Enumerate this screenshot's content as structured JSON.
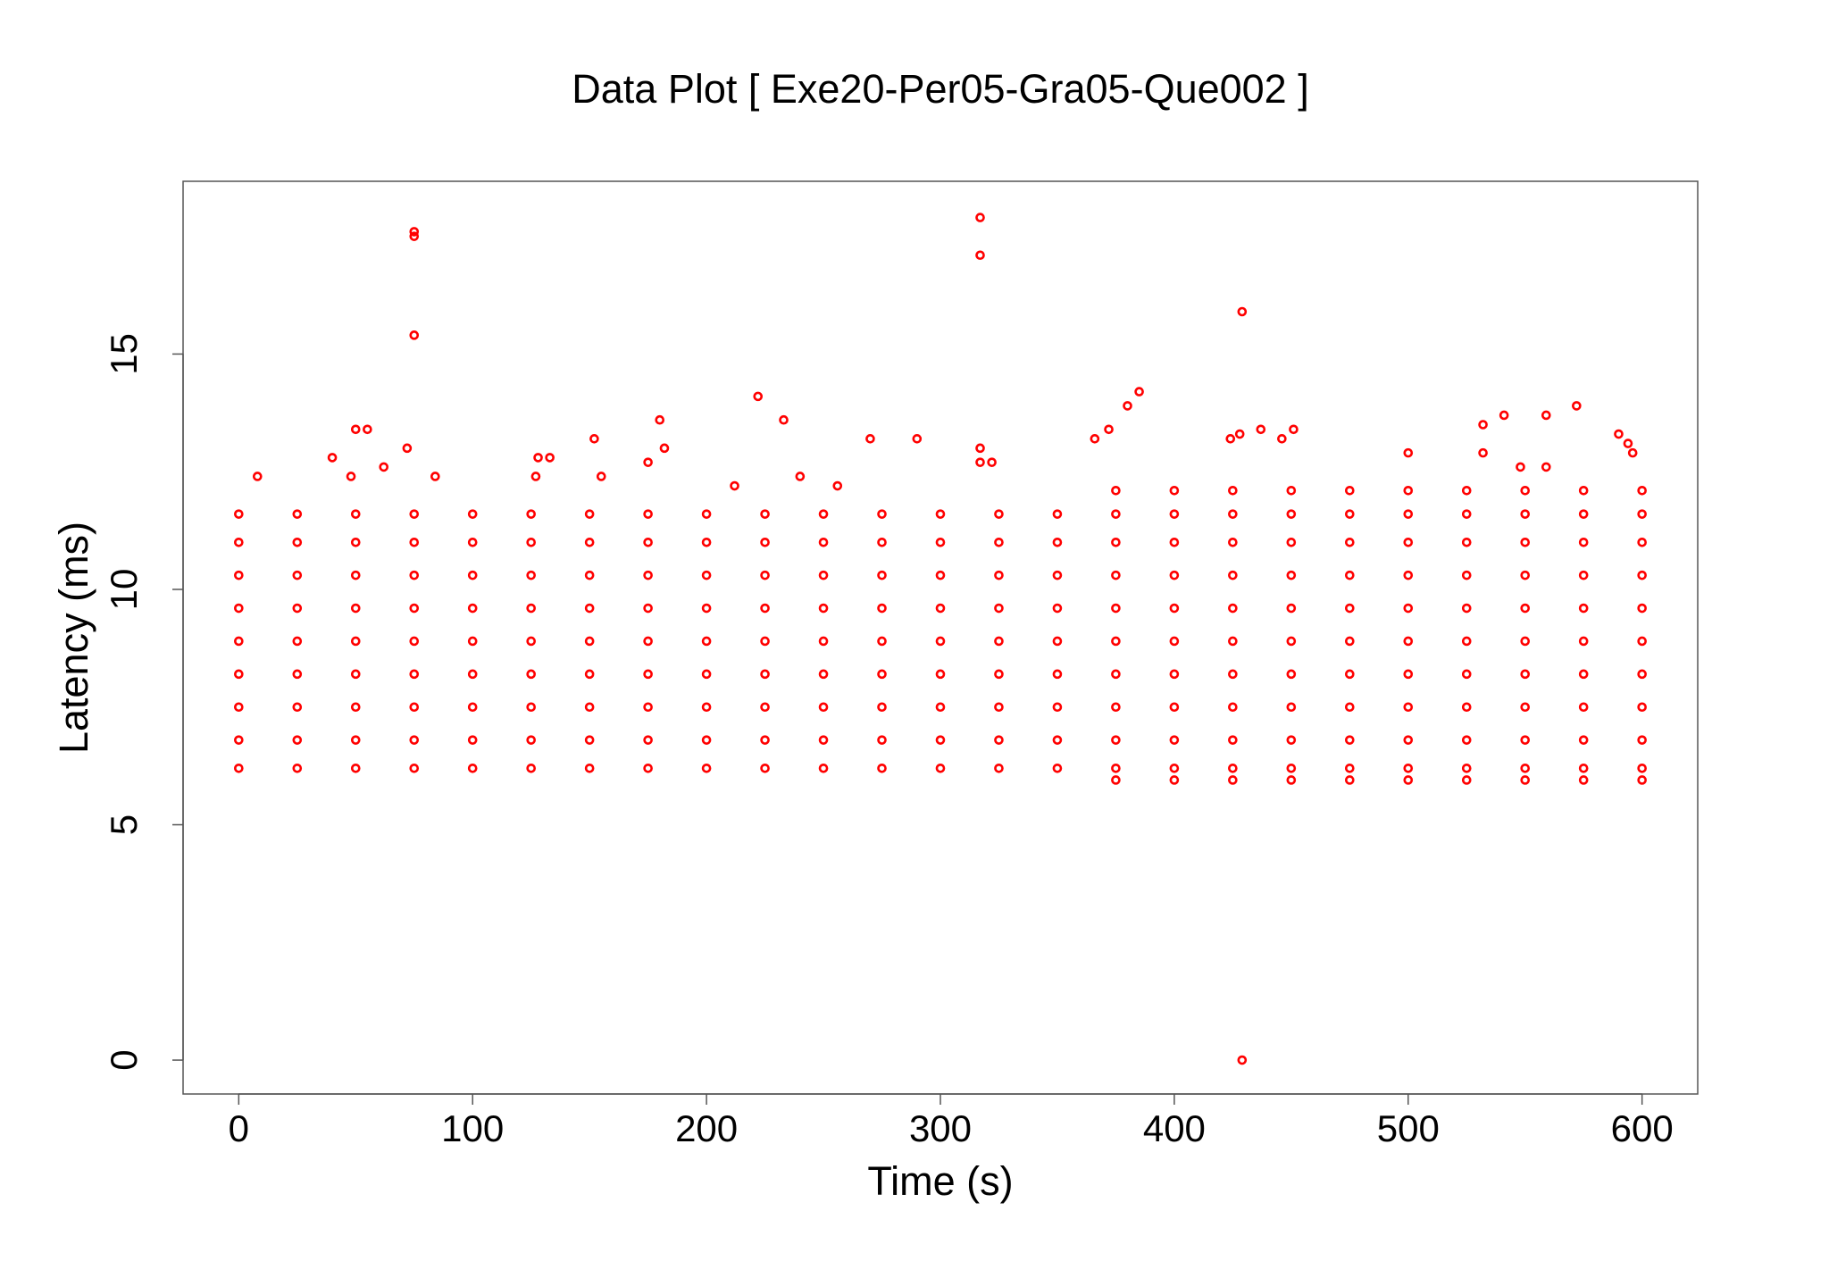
{
  "chart_data": {
    "type": "scatter",
    "title": "Data Plot [ Exe20-Per05-Gra05-Que002 ]",
    "x_label": "Time (s)",
    "y_label": "Latency (ms)",
    "color": "#ff0000",
    "xlim": [
      -23.8,
      623.8
    ],
    "ylim": [
      -0.72,
      18.67
    ],
    "xticks": [
      0,
      100,
      200,
      300,
      400,
      500,
      600
    ],
    "yticks": [
      0,
      5,
      10,
      15
    ],
    "x": [
      0,
      25,
      50,
      75,
      100,
      125,
      150,
      175,
      200,
      225,
      250,
      275,
      300,
      325,
      350,
      375,
      400,
      425,
      450,
      475,
      500,
      525,
      550,
      575,
      600,
      0,
      25,
      50,
      75,
      100,
      125,
      150,
      175,
      200,
      225,
      250,
      275,
      300,
      325,
      350,
      375,
      400,
      425,
      450,
      475,
      500,
      525,
      550,
      575,
      600,
      0,
      25,
      50,
      75,
      100,
      125,
      150,
      175,
      200,
      225,
      250,
      275,
      300,
      325,
      350,
      375,
      400,
      425,
      450,
      475,
      500,
      525,
      550,
      575,
      600,
      0,
      25,
      50,
      75,
      100,
      125,
      150,
      175,
      200,
      225,
      250,
      275,
      300,
      325,
      350,
      375,
      400,
      425,
      450,
      475,
      500,
      525,
      550,
      575,
      600,
      0,
      25,
      50,
      75,
      100,
      125,
      150,
      175,
      200,
      225,
      250,
      275,
      300,
      325,
      350,
      375,
      400,
      425,
      450,
      475,
      500,
      525,
      550,
      575,
      600,
      0,
      25,
      50,
      75,
      100,
      125,
      150,
      175,
      200,
      225,
      250,
      275,
      300,
      325,
      350,
      375,
      400,
      425,
      450,
      475,
      500,
      525,
      550,
      575,
      600,
      0,
      25,
      50,
      75,
      100,
      125,
      150,
      175,
      200,
      225,
      250,
      275,
      300,
      325,
      350,
      375,
      400,
      425,
      450,
      475,
      500,
      525,
      550,
      575,
      600,
      0,
      25,
      50,
      75,
      100,
      125,
      150,
      175,
      200,
      225,
      250,
      275,
      300,
      325,
      350,
      375,
      400,
      425,
      450,
      475,
      500,
      525,
      550,
      575,
      600,
      0,
      25,
      50,
      75,
      100,
      125,
      150,
      175,
      200,
      225,
      250,
      275,
      300,
      325,
      350,
      375,
      400,
      425,
      450,
      475,
      500,
      525,
      550,
      575,
      600,
      375,
      400,
      425,
      450,
      475,
      500,
      525,
      550,
      575,
      600,
      375,
      400,
      425,
      450,
      475,
      500,
      525,
      550,
      575,
      600,
      75,
      75,
      75,
      317,
      317,
      429,
      429,
      385,
      222,
      572,
      380,
      541,
      559,
      233,
      180,
      532,
      50,
      55,
      437,
      451,
      372,
      590,
      270,
      290,
      152,
      366,
      424,
      428,
      446,
      594,
      317,
      40,
      72,
      182,
      128,
      133,
      175,
      62,
      500,
      548,
      559,
      596,
      317,
      322,
      48,
      84,
      127,
      155,
      240,
      256,
      212,
      8,
      532
    ],
    "y": [
      6.2,
      6.2,
      6.2,
      6.2,
      6.2,
      6.2,
      6.2,
      6.2,
      6.2,
      6.2,
      6.2,
      6.2,
      6.2,
      6.2,
      6.2,
      6.2,
      6.2,
      6.2,
      6.2,
      6.2,
      6.2,
      6.2,
      6.2,
      6.2,
      6.2,
      6.8,
      6.8,
      6.8,
      6.8,
      6.8,
      6.8,
      6.8,
      6.8,
      6.8,
      6.8,
      6.8,
      6.8,
      6.8,
      6.8,
      6.8,
      6.8,
      6.8,
      6.8,
      6.8,
      6.8,
      6.8,
      6.8,
      6.8,
      6.8,
      6.8,
      7.5,
      7.5,
      7.5,
      7.5,
      7.5,
      7.5,
      7.5,
      7.5,
      7.5,
      7.5,
      7.5,
      7.5,
      7.5,
      7.5,
      7.5,
      7.5,
      7.5,
      7.5,
      7.5,
      7.5,
      7.5,
      7.5,
      7.5,
      7.5,
      7.5,
      8.2,
      8.2,
      8.2,
      8.2,
      8.2,
      8.2,
      8.2,
      8.2,
      8.2,
      8.2,
      8.2,
      8.2,
      8.2,
      8.2,
      8.2,
      8.2,
      8.2,
      8.2,
      8.2,
      8.2,
      8.2,
      8.2,
      8.2,
      8.2,
      8.2,
      8.9,
      8.9,
      8.9,
      8.9,
      8.9,
      8.9,
      8.9,
      8.9,
      8.9,
      8.9,
      8.9,
      8.9,
      8.9,
      8.9,
      8.9,
      8.9,
      8.9,
      8.9,
      8.9,
      8.9,
      8.9,
      8.9,
      8.9,
      8.9,
      8.9,
      9.6,
      9.6,
      9.6,
      9.6,
      9.6,
      9.6,
      9.6,
      9.6,
      9.6,
      9.6,
      9.6,
      9.6,
      9.6,
      9.6,
      9.6,
      9.6,
      9.6,
      9.6,
      9.6,
      9.6,
      9.6,
      9.6,
      9.6,
      9.6,
      9.6,
      10.3,
      10.3,
      10.3,
      10.3,
      10.3,
      10.3,
      10.3,
      10.3,
      10.3,
      10.3,
      10.3,
      10.3,
      10.3,
      10.3,
      10.3,
      10.3,
      10.3,
      10.3,
      10.3,
      10.3,
      10.3,
      10.3,
      10.3,
      10.3,
      10.3,
      11.0,
      11.0,
      11.0,
      11.0,
      11.0,
      11.0,
      11.0,
      11.0,
      11.0,
      11.0,
      11.0,
      11.0,
      11.0,
      11.0,
      11.0,
      11.0,
      11.0,
      11.0,
      11.0,
      11.0,
      11.0,
      11.0,
      11.0,
      11.0,
      11.0,
      11.6,
      11.6,
      11.6,
      11.6,
      11.6,
      11.6,
      11.6,
      11.6,
      11.6,
      11.6,
      11.6,
      11.6,
      11.6,
      11.6,
      11.6,
      11.6,
      11.6,
      11.6,
      11.6,
      11.6,
      11.6,
      11.6,
      11.6,
      11.6,
      11.6,
      12.1,
      12.1,
      12.1,
      12.1,
      12.1,
      12.1,
      12.1,
      12.1,
      12.1,
      12.1,
      5.95,
      5.95,
      5.95,
      5.95,
      5.95,
      5.95,
      5.95,
      5.95,
      5.95,
      5.95,
      17.6,
      17.5,
      15.4,
      17.9,
      17.1,
      15.9,
      0,
      14.2,
      14.1,
      13.9,
      13.9,
      13.7,
      13.7,
      13.6,
      13.6,
      13.5,
      13.4,
      13.4,
      13.4,
      13.4,
      13.4,
      13.3,
      13.2,
      13.2,
      13.2,
      13.2,
      13.2,
      13.3,
      13.2,
      13.1,
      13.0,
      12.8,
      13.0,
      13.0,
      12.8,
      12.8,
      12.7,
      12.6,
      12.9,
      12.6,
      12.6,
      12.9,
      12.7,
      12.7,
      12.4,
      12.4,
      12.4,
      12.4,
      12.4,
      12.2,
      12.2,
      12.4,
      12.9
    ]
  }
}
